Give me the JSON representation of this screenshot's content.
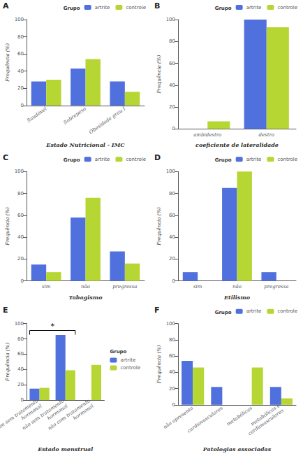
{
  "chart_data": [
    {
      "type": "bar",
      "title": "A",
      "xlabel": "Estado Nutricional - IMC",
      "ylabel": "Frequência (%)",
      "categories": [
        "Saudável",
        "Sobrepeso",
        "Obesidade grau I"
      ],
      "series": [
        {
          "name": "artrite",
          "values": [
            28,
            43,
            28
          ]
        },
        {
          "name": "controle",
          "values": [
            30,
            54,
            16
          ]
        }
      ],
      "ylim": [
        0,
        100
      ],
      "yticks": [
        0,
        20,
        40,
        60,
        80,
        100
      ],
      "grid": false,
      "legend": "upper right",
      "legend_title": "Grupo"
    },
    {
      "type": "bar",
      "title": "B",
      "xlabel": "coeficiente de lateralidade",
      "ylabel": "Frequência (%)",
      "categories": [
        "ambidestro",
        "destro"
      ],
      "series": [
        {
          "name": "artrite",
          "values": [
            0,
            100
          ]
        },
        {
          "name": "controle",
          "values": [
            7,
            93
          ]
        }
      ],
      "ylim": [
        0,
        100
      ],
      "yticks": [
        0,
        20,
        40,
        60,
        80,
        100
      ],
      "grid": false,
      "legend": "upper right",
      "legend_title": "Grupo"
    },
    {
      "type": "bar",
      "title": "C",
      "xlabel": "Tabagismo",
      "ylabel": "Frequência (%)",
      "categories": [
        "sim",
        "não",
        "pregressa"
      ],
      "series": [
        {
          "name": "artrite",
          "values": [
            15,
            58,
            27
          ]
        },
        {
          "name": "controle",
          "values": [
            8,
            76,
            16
          ]
        }
      ],
      "ylim": [
        0,
        100
      ],
      "yticks": [
        0,
        20,
        40,
        60,
        80,
        100
      ],
      "grid": false,
      "legend": "upper right",
      "legend_title": "Grupo"
    },
    {
      "type": "bar",
      "title": "D",
      "xlabel": "Etilismo",
      "ylabel": "Frequência (%)",
      "categories": [
        "sim",
        "não",
        "pregressa"
      ],
      "series": [
        {
          "name": "artrite",
          "values": [
            8,
            85,
            8
          ]
        },
        {
          "name": "controle",
          "values": [
            0,
            100,
            0
          ]
        }
      ],
      "ylim": [
        0,
        100
      ],
      "yticks": [
        0,
        20,
        40,
        60,
        80,
        100
      ],
      "grid": false,
      "legend": "upper right",
      "legend_title": "Grupo"
    },
    {
      "type": "bar",
      "title": "E",
      "xlabel": "Estado menstrual",
      "ylabel": "Frequência (%)",
      "categories": [
        "sim sem tratamento\nhormonal",
        "não sem tratamento\nhormonal",
        "não com tratamento\nhormonal"
      ],
      "series": [
        {
          "name": "artrite",
          "values": [
            15,
            85,
            0
          ]
        },
        {
          "name": "controle",
          "values": [
            16,
            39,
            46
          ]
        }
      ],
      "ylim": [
        0,
        100
      ],
      "yticks": [
        0,
        20,
        40,
        60,
        80,
        100
      ],
      "grid": false,
      "legend": "center right",
      "legend_title": "Grupo",
      "annotations": [
        {
          "text": "*",
          "from": "sim sem tratamento\nhormonal",
          "to": "não sem tratamento\nhormonal",
          "y": 91
        }
      ]
    },
    {
      "type": "bar",
      "title": "F",
      "xlabel": "Patologias associadas",
      "ylabel": "Frequência (%)",
      "categories": [
        "não apresenta",
        "cardiovasculares",
        "metabólicas",
        "metabólicas e\ncardiovasculares"
      ],
      "series": [
        {
          "name": "artrite",
          "values": [
            54,
            22,
            0,
            22
          ]
        },
        {
          "name": "controle",
          "values": [
            46,
            0,
            46,
            8
          ]
        }
      ],
      "ylim": [
        0,
        100
      ],
      "yticks": [
        0,
        20,
        40,
        60,
        80,
        100
      ],
      "grid": false,
      "legend": "upper right",
      "legend_title": "Grupo"
    }
  ]
}
